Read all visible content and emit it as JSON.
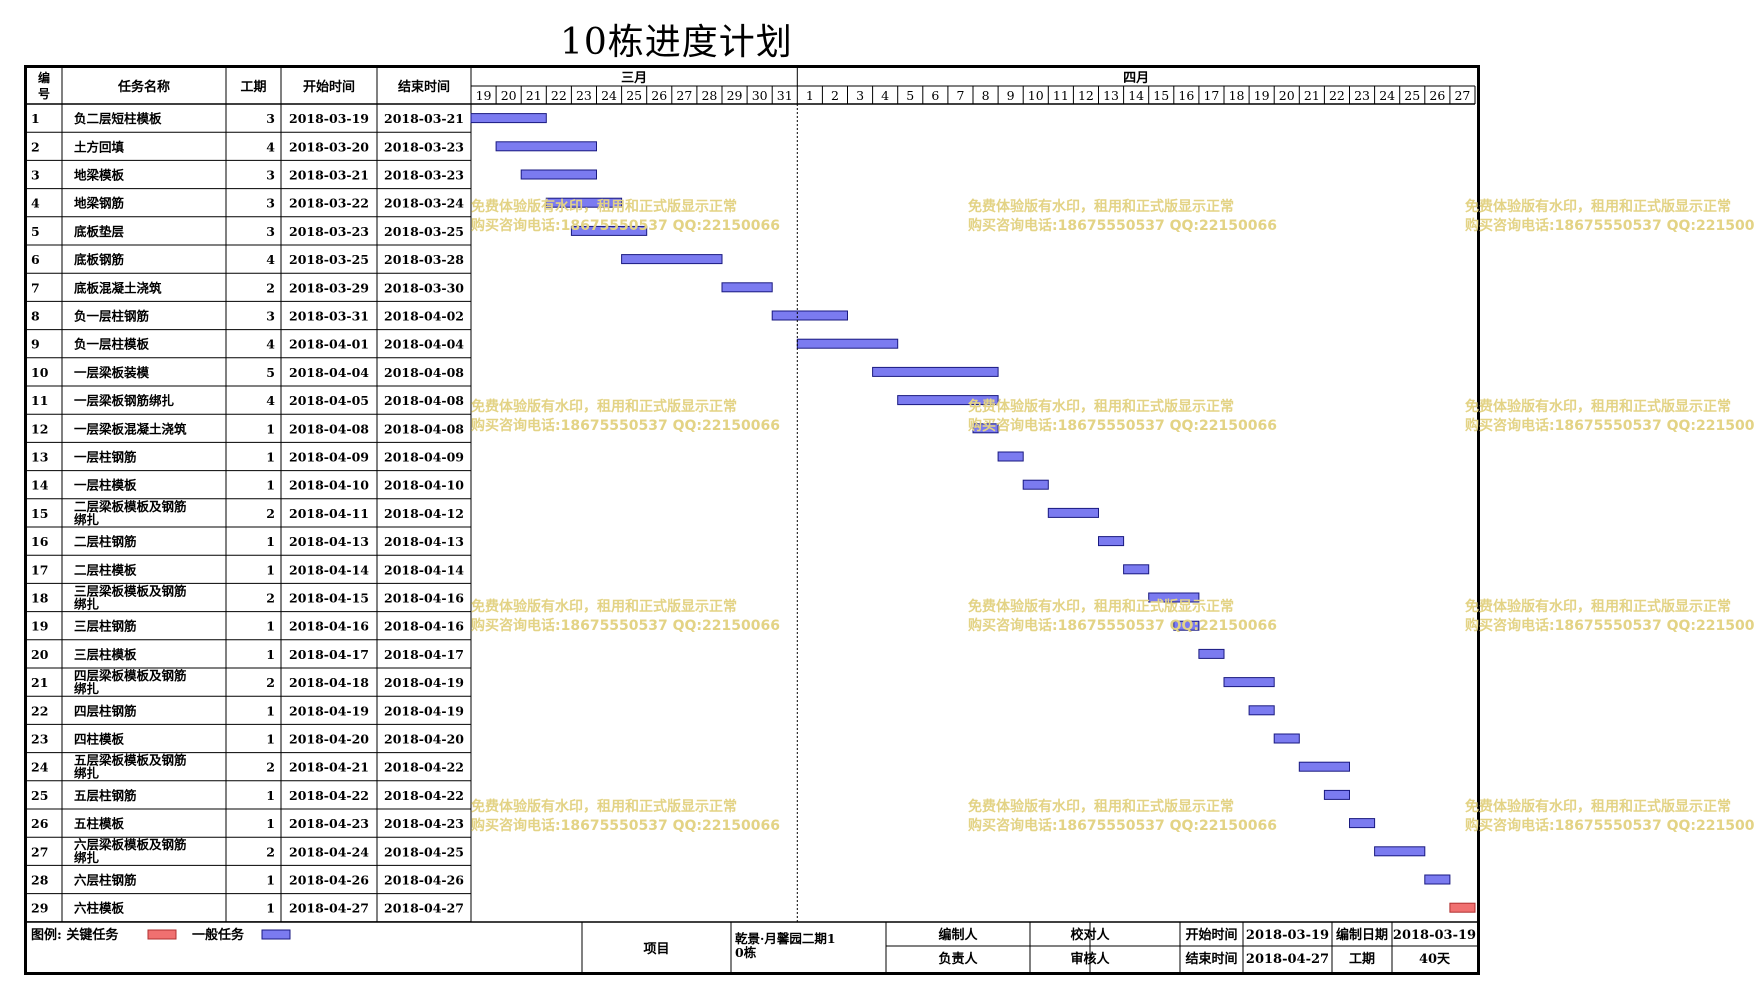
{
  "title": "10栋进度计划",
  "headers": {
    "id": "编号",
    "name": "任务名称",
    "duration": "工期",
    "start": "开始时间",
    "end": "结束时间"
  },
  "months": [
    {
      "label": "三月",
      "days": [
        19,
        20,
        21,
        22,
        23,
        24,
        25,
        26,
        27,
        28,
        29,
        30,
        31
      ]
    },
    {
      "label": "四月",
      "days": [
        1,
        2,
        3,
        4,
        5,
        6,
        7,
        8,
        9,
        10,
        11,
        12,
        13,
        14,
        15,
        16,
        17,
        18,
        19,
        20,
        21,
        22,
        23,
        24,
        25,
        26,
        27
      ]
    }
  ],
  "colors": {
    "general_task": "#7b7bf0",
    "critical_task": "#f07070",
    "bar_border": "#1a1a80",
    "critical_border": "#b03030",
    "today_line": "#000000",
    "watermark": "#e3d385"
  },
  "chart_data": {
    "type": "gantt",
    "title": "10栋进度计划",
    "xlim": [
      "2018-03-19",
      "2018-04-27"
    ],
    "tasks": [
      {
        "id": "1",
        "name": "负二层短柱模板",
        "duration": 3,
        "start": "2018-03-19",
        "end": "2018-03-21",
        "critical": false
      },
      {
        "id": "2",
        "name": "土方回填",
        "duration": 4,
        "start": "2018-03-20",
        "end": "2018-03-23",
        "critical": false
      },
      {
        "id": "3",
        "name": "地梁模板",
        "duration": 3,
        "start": "2018-03-21",
        "end": "2018-03-23",
        "critical": false
      },
      {
        "id": "4",
        "name": "地梁钢筋",
        "duration": 3,
        "start": "2018-03-22",
        "end": "2018-03-24",
        "critical": false
      },
      {
        "id": "5",
        "name": "底板垫层",
        "duration": 3,
        "start": "2018-03-23",
        "end": "2018-03-25",
        "critical": false
      },
      {
        "id": "6",
        "name": "底板钢筋",
        "duration": 4,
        "start": "2018-03-25",
        "end": "2018-03-28",
        "critical": false
      },
      {
        "id": "7",
        "name": "底板混凝土浇筑",
        "duration": 2,
        "start": "2018-03-29",
        "end": "2018-03-30",
        "critical": false
      },
      {
        "id": "8",
        "name": "负一层柱钢筋",
        "duration": 3,
        "start": "2018-03-31",
        "end": "2018-04-02",
        "critical": false
      },
      {
        "id": "9",
        "name": "负一层柱模板",
        "duration": 4,
        "start": "2018-04-01",
        "end": "2018-04-04",
        "critical": false
      },
      {
        "id": "10",
        "name": "一层梁板装模",
        "duration": 5,
        "start": "2018-04-04",
        "end": "2018-04-08",
        "critical": false
      },
      {
        "id": "11",
        "name": "一层梁板钢筋绑扎",
        "duration": 4,
        "start": "2018-04-05",
        "end": "2018-04-08",
        "critical": false
      },
      {
        "id": "12",
        "name": "一层梁板混凝土浇筑",
        "duration": 1,
        "start": "2018-04-08",
        "end": "2018-04-08",
        "critical": false
      },
      {
        "id": "13",
        "name": "一层柱钢筋",
        "duration": 1,
        "start": "2018-04-09",
        "end": "2018-04-09",
        "critical": false
      },
      {
        "id": "14",
        "name": "一层柱模板",
        "duration": 1,
        "start": "2018-04-10",
        "end": "2018-04-10",
        "critical": false
      },
      {
        "id": "15",
        "name": "二层梁板模板及钢筋绑扎",
        "duration": 2,
        "start": "2018-04-11",
        "end": "2018-04-12",
        "critical": false
      },
      {
        "id": "16",
        "name": "二层柱钢筋",
        "duration": 1,
        "start": "2018-04-13",
        "end": "2018-04-13",
        "critical": false
      },
      {
        "id": "17",
        "name": "二层柱模板",
        "duration": 1,
        "start": "2018-04-14",
        "end": "2018-04-14",
        "critical": false
      },
      {
        "id": "18",
        "name": "三层梁板模板及钢筋绑扎",
        "duration": 2,
        "start": "2018-04-15",
        "end": "2018-04-16",
        "critical": false
      },
      {
        "id": "19",
        "name": "三层柱钢筋",
        "duration": 1,
        "start": "2018-04-16",
        "end": "2018-04-16",
        "critical": false
      },
      {
        "id": "20",
        "name": "三层柱模板",
        "duration": 1,
        "start": "2018-04-17",
        "end": "2018-04-17",
        "critical": false
      },
      {
        "id": "21",
        "name": "四层梁板模板及钢筋绑扎",
        "duration": 2,
        "start": "2018-04-18",
        "end": "2018-04-19",
        "critical": false
      },
      {
        "id": "22",
        "name": "四层柱钢筋",
        "duration": 1,
        "start": "2018-04-19",
        "end": "2018-04-19",
        "critical": false
      },
      {
        "id": "23",
        "name": "四柱模板",
        "duration": 1,
        "start": "2018-04-20",
        "end": "2018-04-20",
        "critical": false
      },
      {
        "id": "24",
        "name": "五层梁板模板及钢筋绑扎",
        "duration": 2,
        "start": "2018-04-21",
        "end": "2018-04-22",
        "critical": false
      },
      {
        "id": "25",
        "name": "五层柱钢筋",
        "duration": 1,
        "start": "2018-04-22",
        "end": "2018-04-22",
        "critical": false
      },
      {
        "id": "26",
        "name": "五柱模板",
        "duration": 1,
        "start": "2018-04-23",
        "end": "2018-04-23",
        "critical": false
      },
      {
        "id": "27",
        "name": "六层梁板模板及钢筋绑扎",
        "duration": 2,
        "start": "2018-04-24",
        "end": "2018-04-25",
        "critical": false
      },
      {
        "id": "28",
        "name": "六层柱钢筋",
        "duration": 1,
        "start": "2018-04-26",
        "end": "2018-04-26",
        "critical": false
      },
      {
        "id": "29",
        "name": "六柱模板",
        "duration": 1,
        "start": "2018-04-27",
        "end": "2018-04-27",
        "critical": true
      }
    ],
    "today_marker": "2018-04-01"
  },
  "footer": {
    "legend_label": "图例:",
    "critical_label": "关键任务",
    "general_label": "一般任务",
    "project_label": "项目",
    "project_name": "乾景·月馨园二期10栋",
    "editor_label": "编制人",
    "editor": "",
    "owner_label": "负责人",
    "owner": "",
    "checker_label": "校对人",
    "checker": "",
    "reviewer_label": "审核人",
    "reviewer": "",
    "start_label": "开始时间",
    "start": "2018-03-19",
    "end_label": "结束时间",
    "end": "2018-04-27",
    "date_label": "编制日期",
    "date": "2018-03-19",
    "duration_label": "工期",
    "duration": "40天"
  },
  "watermark": {
    "line1": "免费体验版有水印，租用和正式版显示正常",
    "line2": "购买咨询电话:18675550537 QQ:22150066"
  }
}
